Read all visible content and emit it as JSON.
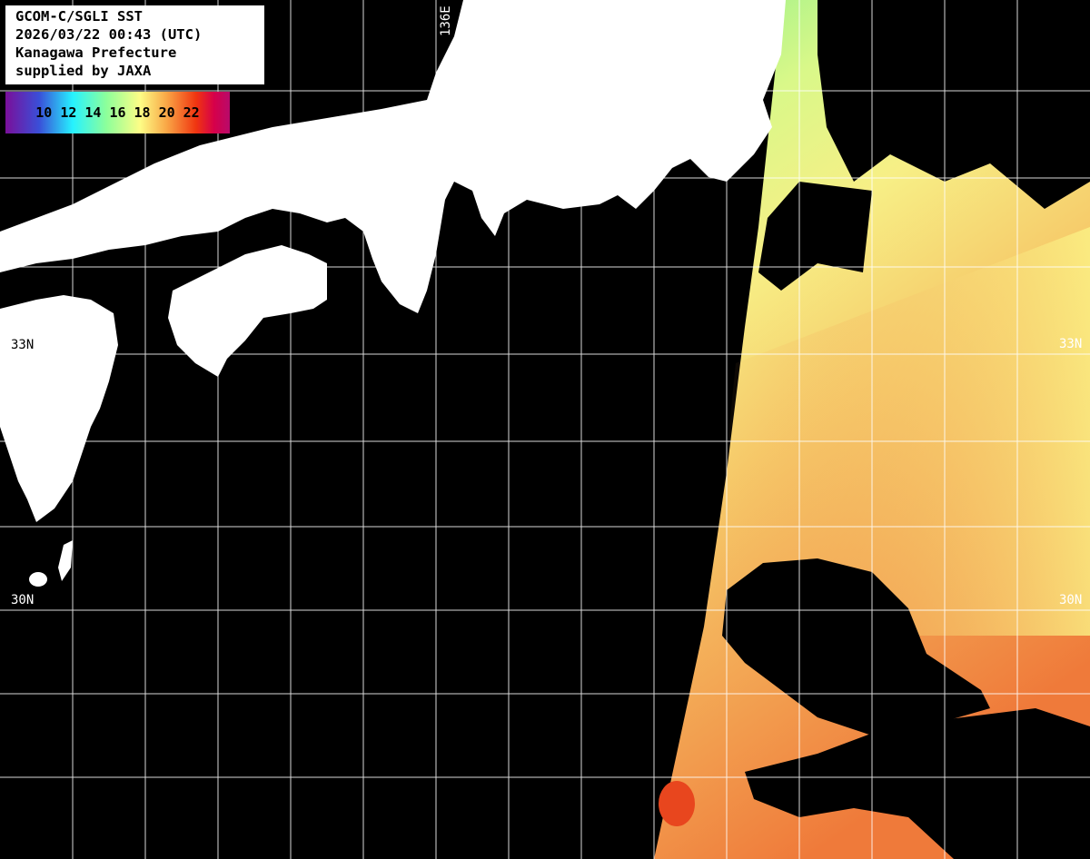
{
  "header": {
    "lines": [
      "GCOM-C/SGLI SST",
      "2026/03/22 00:43 (UTC)",
      "Kanagawa Prefecture",
      "supplied by JAXA"
    ]
  },
  "colorbar": {
    "unit_hint": "",
    "ticks": [
      "10",
      "12",
      "14",
      "16",
      "18",
      "20",
      "22"
    ],
    "colors": [
      "#7a0f9a",
      "#3a4fd8",
      "#26f2ff",
      "#8dff9a",
      "#fdfd86",
      "#f9a545",
      "#f03510",
      "#d6004a"
    ]
  },
  "grid_labels": {
    "lon_136": "136E",
    "lat_33_left": "33N",
    "lat_33_right": "33N",
    "lat_30_left": "30N",
    "lat_30_right": "30N"
  },
  "colors": {
    "land": "#ffffff",
    "no_data": "#000000",
    "grid": "#ffffff"
  }
}
